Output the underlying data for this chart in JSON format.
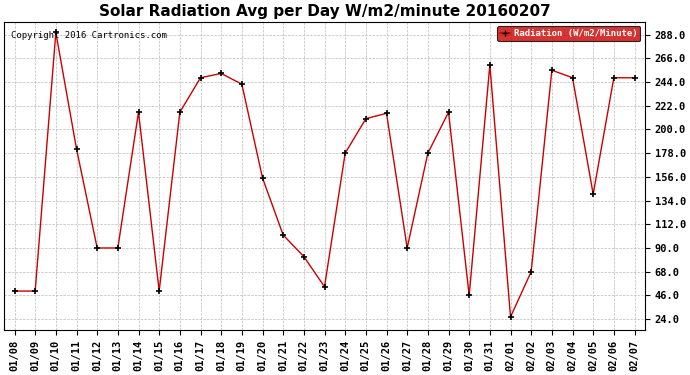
{
  "title": "Solar Radiation Avg per Day W/m2/minute 20160207",
  "copyright": "Copyright 2016 Cartronics.com",
  "legend_label": "Radiation (W/m2/Minute)",
  "dates": [
    "01/08",
    "01/09",
    "01/10",
    "01/11",
    "01/12",
    "01/13",
    "01/14",
    "01/15",
    "01/16",
    "01/17",
    "01/18",
    "01/19",
    "01/20",
    "01/21",
    "01/22",
    "01/23",
    "01/24",
    "01/25",
    "01/26",
    "01/27",
    "01/28",
    "01/29",
    "01/30",
    "01/31",
    "02/01",
    "02/02",
    "02/03",
    "02/04",
    "02/05",
    "02/06",
    "02/07"
  ],
  "values": [
    50,
    50,
    290,
    182,
    90,
    90,
    216,
    50,
    216,
    248,
    252,
    242,
    155,
    102,
    82,
    54,
    178,
    210,
    215,
    90,
    178,
    216,
    46,
    260,
    26,
    68,
    255,
    248,
    140,
    248,
    248
  ],
  "line_color": "#cc0000",
  "marker_color": "#000000",
  "background_color": "#ffffff",
  "grid_color": "#bbbbbb",
  "legend_bg": "#cc0000",
  "legend_text_color": "#ffffff",
  "yticks": [
    24.0,
    46.0,
    68.0,
    90.0,
    112.0,
    134.0,
    156.0,
    178.0,
    200.0,
    222.0,
    244.0,
    266.0,
    288.0
  ],
  "ylim": [
    14,
    300
  ],
  "title_fontsize": 11,
  "tick_fontsize": 7.5,
  "copyright_fontsize": 6.5
}
